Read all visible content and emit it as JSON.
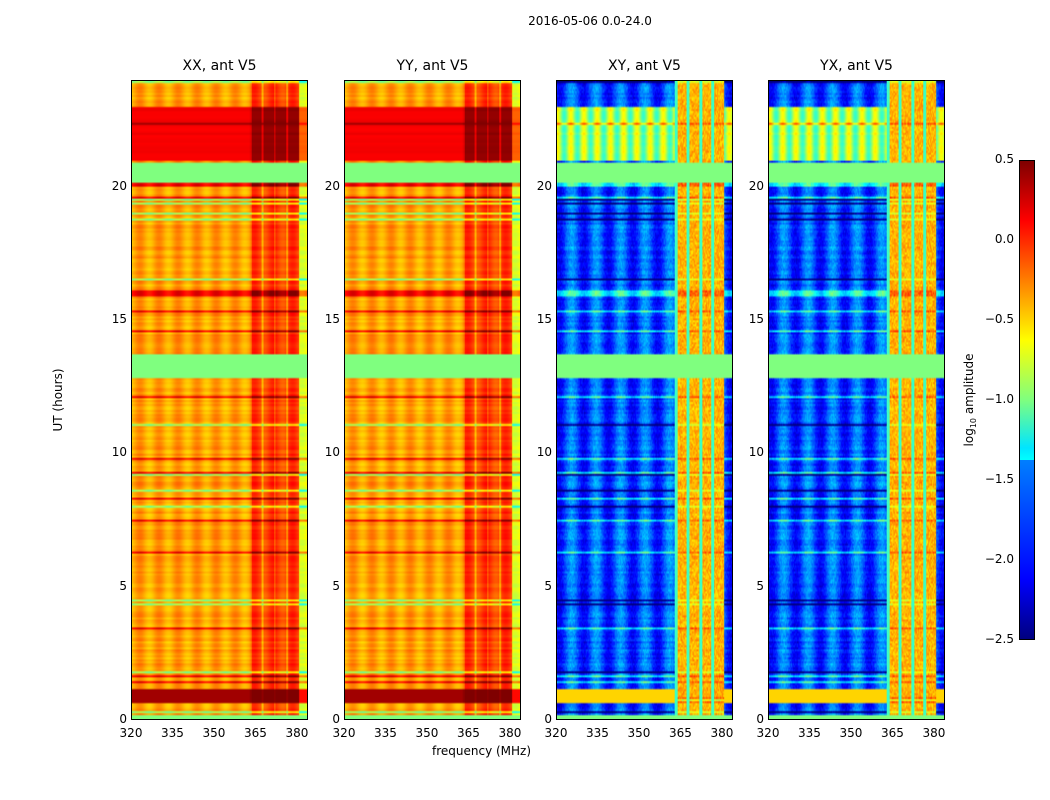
{
  "chart_data": {
    "type": "heatmap",
    "title": "2016-05-06 0.0-24.0",
    "xlabel": "frequency (MHz)",
    "ylabel": "UT (hours)",
    "xlim": [
      320,
      384
    ],
    "ylim": [
      0,
      24
    ],
    "xticks": [
      "320",
      "335",
      "350",
      "365",
      "380"
    ],
    "yticks": [
      "0",
      "5",
      "10",
      "15",
      "20"
    ],
    "xtick_values": [
      320,
      335,
      350,
      365,
      380
    ],
    "ytick_values": [
      0,
      5,
      10,
      15,
      20
    ],
    "panels": [
      {
        "title": "XX, ant V5",
        "kind": "auto"
      },
      {
        "title": "YY, ant V5",
        "kind": "auto"
      },
      {
        "title": "XY, ant V5",
        "kind": "cross"
      },
      {
        "title": "YX, ant V5",
        "kind": "cross"
      }
    ],
    "colorbar": {
      "label_prefix": "log",
      "label_sub": "10",
      "label_suffix": " amplitude",
      "range": [
        -2.5,
        0.5
      ],
      "ticks": [
        "0.5",
        "0.0",
        "−0.5",
        "−1.0",
        "−1.5",
        "−2.0",
        "−2.5"
      ],
      "tick_values": [
        0.5,
        0,
        -0.5,
        -1,
        -1.5,
        -2,
        -2.5
      ],
      "colormap": "jet"
    },
    "flagged_hours": [
      [
        12.8,
        13.7
      ],
      [
        20.2,
        20.9
      ]
    ]
  }
}
